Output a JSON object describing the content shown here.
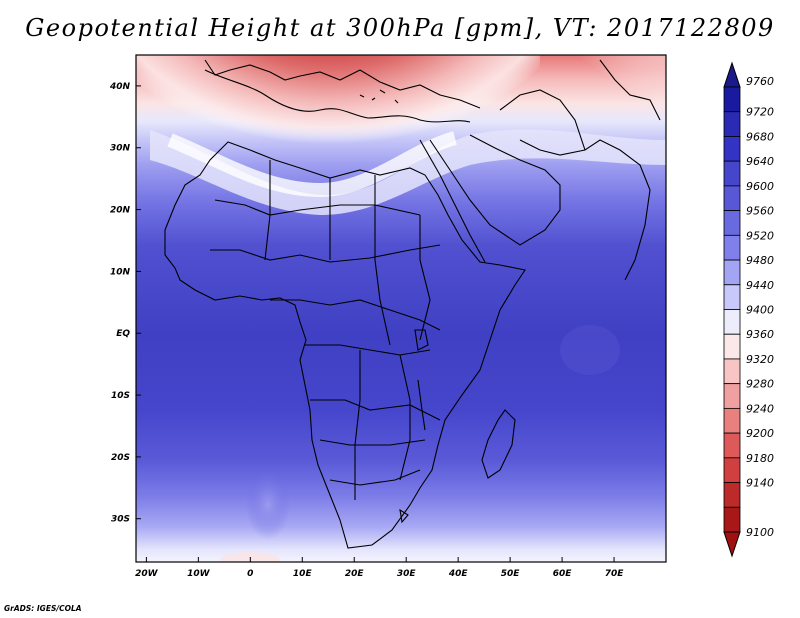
{
  "title": "Geopotential Height at 300hPa [gpm], VT: 2017122809",
  "credit": "GrADS: IGES/COLA",
  "map": {
    "variable": "Geopotential Height",
    "level": "300hPa",
    "units": "gpm",
    "valid_time": "2017122809",
    "lon_range": [
      -22,
      80
    ],
    "lat_range": [
      -37,
      45
    ],
    "lon_ticks": [
      "20W",
      "10W",
      "0",
      "10E",
      "20E",
      "30E",
      "40E",
      "50E",
      "60E",
      "70E"
    ],
    "lat_ticks": [
      "40N",
      "30N",
      "20N",
      "10N",
      "EQ",
      "10S",
      "20S",
      "30S"
    ]
  },
  "colorbar": {
    "levels": [
      "9760",
      "9720",
      "9680",
      "9640",
      "9600",
      "9560",
      "9520",
      "9480",
      "9440",
      "9400",
      "9360",
      "9320",
      "9280",
      "9240",
      "9200",
      "9180",
      "9140",
      "9100"
    ],
    "colors": [
      "#1a1aa0",
      "#2a2ab4",
      "#3434c4",
      "#4646cc",
      "#5858d6",
      "#6a6ae0",
      "#8080ec",
      "#a4a4f4",
      "#c8c8fa",
      "#ececfc",
      "#fce8e8",
      "#f8c4c4",
      "#f0a0a0",
      "#e88080",
      "#de5a5a",
      "#d04040",
      "#bc2a2a",
      "#a81818"
    ],
    "top_color": "#1a1a8c",
    "bottom_color": "#a01010"
  }
}
